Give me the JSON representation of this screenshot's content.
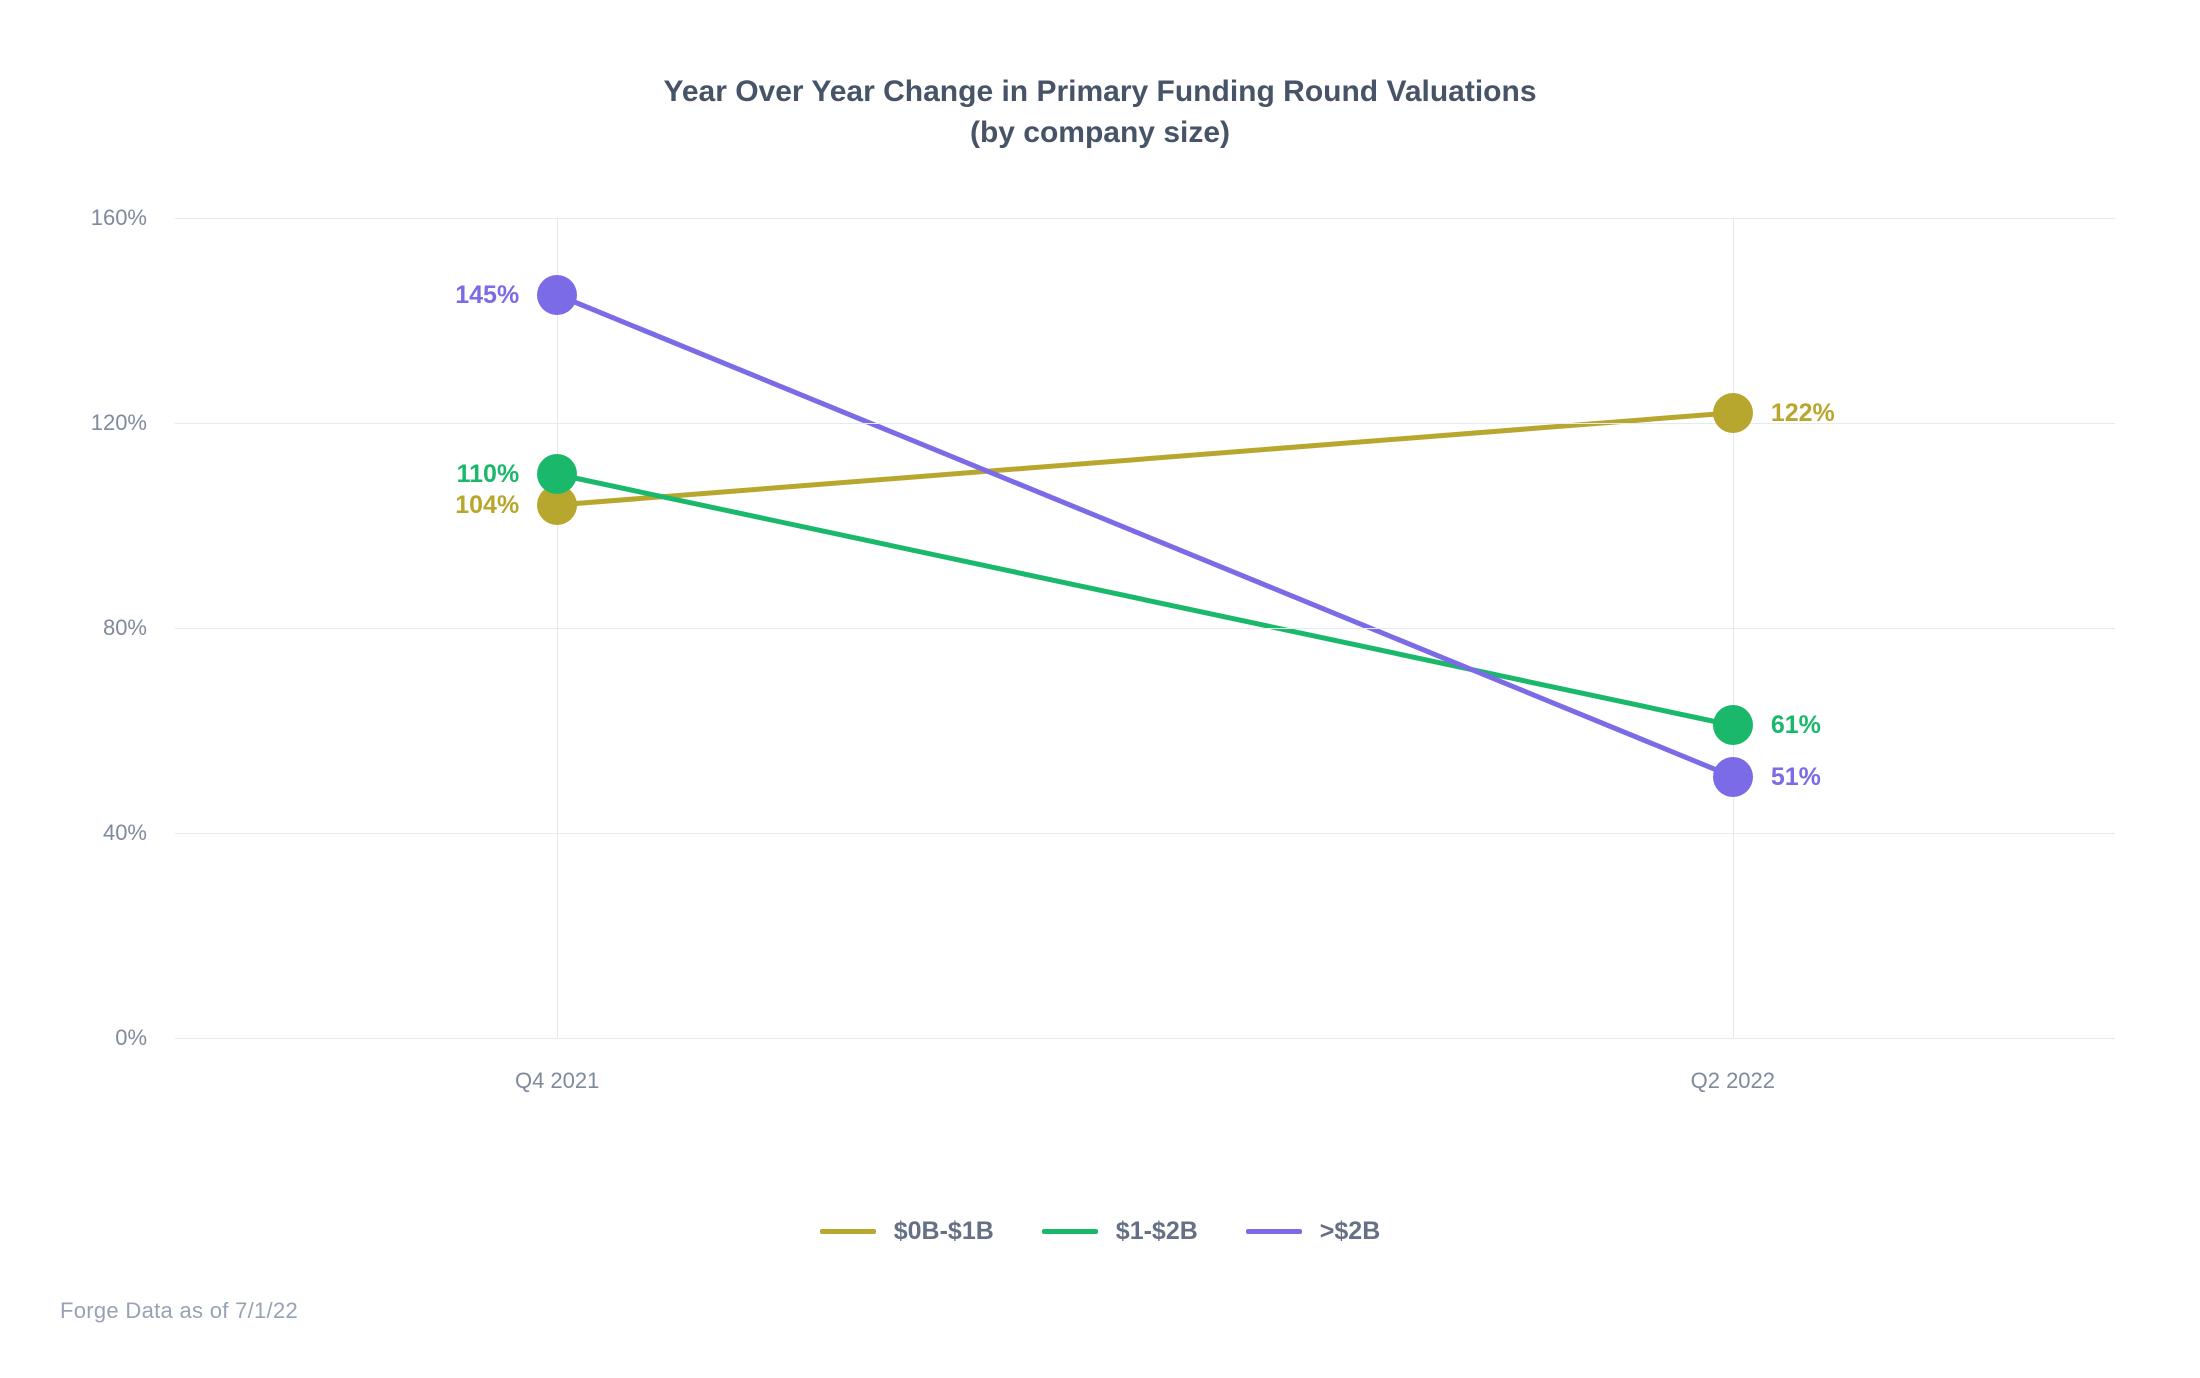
{
  "chart": {
    "type": "line",
    "title_line1": "Year Over Year Change in Primary Funding Round Valuations",
    "title_line2": "(by company size)",
    "title_fontsize": 30,
    "title_color": "#475467",
    "background_color": "#ffffff",
    "grid_color": "#e6e9ee",
    "axis_label_color": "#808a9d",
    "axis_fontsize": 22,
    "point_label_fontsize": 25,
    "legend_label_color": "#667085",
    "legend_fontsize": 25,
    "marker_radius": 20,
    "line_width": 5,
    "legend_line_width": 5,
    "ylim": [
      0,
      160
    ],
    "ytick_step": 40,
    "y_ticks": [
      {
        "value": 0,
        "label": "0%"
      },
      {
        "value": 40,
        "label": "40%"
      },
      {
        "value": 80,
        "label": "80%"
      },
      {
        "value": 120,
        "label": "120%"
      },
      {
        "value": 160,
        "label": "160%"
      }
    ],
    "x_categories": [
      "Q4 2021",
      "Q2 2022"
    ],
    "x_positions_pct": [
      19.7,
      80.3
    ],
    "series": [
      {
        "name": "$0B-$1B",
        "color": "#b8a72e",
        "values": [
          104,
          122
        ],
        "labels": [
          "104%",
          "122%"
        ],
        "label_sides": [
          "left",
          "right"
        ]
      },
      {
        "name": "$1-$2B",
        "color": "#1ab86b",
        "values": [
          110,
          61
        ],
        "labels": [
          "110%",
          "61%"
        ],
        "label_sides": [
          "left",
          "right"
        ]
      },
      {
        "name": ">$2B",
        "color": "#7b6be6",
        "values": [
          145,
          51
        ],
        "labels": [
          "145%",
          "51%"
        ],
        "label_sides": [
          "left",
          "right"
        ]
      }
    ],
    "footnote": "Forge Data as of 7/1/22",
    "footnote_color": "#98a2b3"
  }
}
